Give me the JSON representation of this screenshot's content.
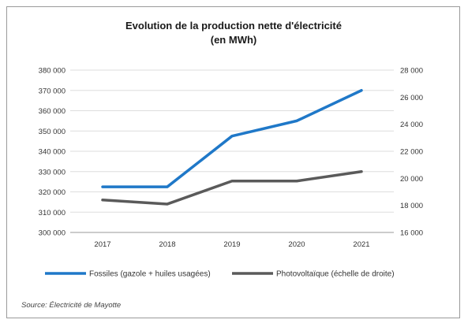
{
  "chart_data": {
    "type": "line",
    "title_line1": "Evolution de la production nette d'électricité",
    "title_line2": "(en MWh)",
    "categories": [
      "2017",
      "2018",
      "2019",
      "2020",
      "2021"
    ],
    "y_left": {
      "min": 300000,
      "max": 380000,
      "step": 10000,
      "ticks": [
        "300 000",
        "310 000",
        "320 000",
        "330 000",
        "340 000",
        "350 000",
        "360 000",
        "370 000",
        "380 000"
      ]
    },
    "y_right": {
      "min": 16000,
      "max": 28000,
      "step": 2000,
      "ticks": [
        "16 000",
        "18 000",
        "20 000",
        "22 000",
        "24 000",
        "26 000",
        "28 000"
      ]
    },
    "grid": true,
    "legend_position": "bottom",
    "series": [
      {
        "name": "Fossiles (gazole + huiles usagées)",
        "axis": "left",
        "color": "#1f78c8",
        "values": [
          322500,
          322500,
          347500,
          355000,
          370000
        ]
      },
      {
        "name": "Photovoltaïque (échelle de droite)",
        "axis": "right",
        "color": "#5a5a5a",
        "values": [
          18400,
          18100,
          19800,
          19800,
          20500
        ]
      }
    ],
    "source": "Source: Électricité de Mayotte"
  }
}
